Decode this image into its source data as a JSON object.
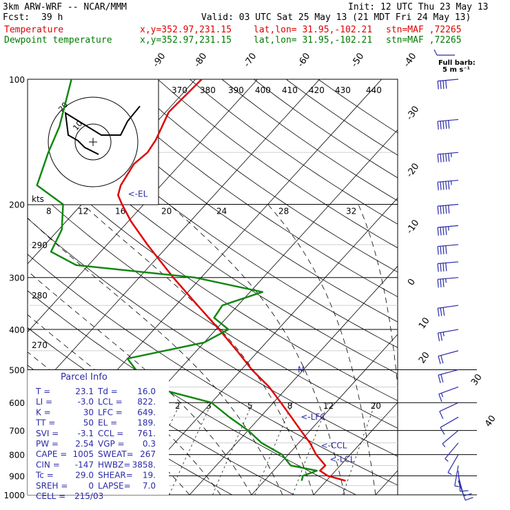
{
  "header": {
    "model": "3km ARW-WRF -- NCAR/MMM",
    "init": "Init: 12 UTC Thu 23 May 13",
    "fcst_label": "Fcst:",
    "fcst_value": "39 h",
    "valid": "Valid: 03 UTC Sat 25 May 13 (21 MDT Fri 24 May 13)",
    "temp_label": "Temperature",
    "dew_label": "Dewpoint temperature",
    "xy": "x,y=352.97,231.15",
    "latlon": "lat,lon= 31.95,-102.21",
    "stn": "stn=MAF ,72265",
    "full_barb_line1": "Full barb:",
    "full_barb_line2": "5 m s⁻¹"
  },
  "colors": {
    "temperature": "#e00000",
    "dewpoint": "#118811",
    "barbs": "#2a2aa8",
    "grid": "#000000"
  },
  "chart_data": {
    "type": "skew-t",
    "yscale": "log",
    "ylim": [
      1000,
      100
    ],
    "pressure_labels": [
      "100",
      "200",
      "300",
      "400",
      "500",
      "600",
      "700",
      "800",
      "900",
      "1000"
    ],
    "temp_isotherm_labels": [
      "-90",
      "-80",
      "-70",
      "-60",
      "-50",
      "-40",
      "-30",
      "-20",
      "-10",
      "0",
      "10",
      "20",
      "30",
      "40"
    ],
    "mixing_ratio_labels": [
      "2",
      "3",
      "5",
      "8",
      "12",
      "20"
    ],
    "theta_labels": [
      "270",
      "280",
      "290",
      "370",
      "380",
      "390",
      "400",
      "410",
      "420",
      "430",
      "440"
    ],
    "hodo_kts_label": "kts",
    "hodo_speed_labels": [
      "8",
      "12",
      "16",
      "20",
      "24",
      "28",
      "32"
    ],
    "hodo_ring_labels": [
      "10",
      "20"
    ],
    "level_markers": [
      {
        "label": "<-EL",
        "p": 189
      },
      {
        "label": "<-LFC",
        "p": 649
      },
      {
        "label": "<-CCL",
        "p": 761
      },
      {
        "label": "<-LCL",
        "p": 822
      }
    ],
    "wet_bulb_zero_marker": "M",
    "series": [
      {
        "name": "Temperature",
        "points": [
          [
            925,
            23.1
          ],
          [
            900,
            19.5
          ],
          [
            875,
            17.5
          ],
          [
            850,
            17.6
          ],
          [
            800,
            14.5
          ],
          [
            750,
            11.8
          ],
          [
            700,
            8.5
          ],
          [
            650,
            5.0
          ],
          [
            600,
            1.2
          ],
          [
            550,
            -3.0
          ],
          [
            500,
            -8.3
          ],
          [
            450,
            -13.5
          ],
          [
            400,
            -19.5
          ],
          [
            350,
            -26.5
          ],
          [
            300,
            -34.5
          ],
          [
            250,
            -43.5
          ],
          [
            220,
            -49.5
          ],
          [
            200,
            -53.5
          ],
          [
            190,
            -55.5
          ],
          [
            180,
            -56.5
          ],
          [
            160,
            -57.5
          ],
          [
            150,
            -57.0
          ],
          [
            140,
            -57.5
          ],
          [
            120,
            -59.5
          ],
          [
            100,
            -59.0
          ]
        ]
      },
      {
        "name": "Dewpoint temperature",
        "points": [
          [
            925,
            16.0
          ],
          [
            900,
            15.5
          ],
          [
            875,
            17.0
          ],
          [
            850,
            12.0
          ],
          [
            800,
            9.0
          ],
          [
            750,
            4.0
          ],
          [
            700,
            0.0
          ],
          [
            650,
            -5.0
          ],
          [
            600,
            -10.0
          ],
          [
            550,
            -22.0
          ],
          [
            500,
            -27.0
          ],
          [
            470,
            -30.0
          ],
          [
            430,
            -20.0
          ],
          [
            400,
            -18.0
          ],
          [
            375,
            -22.0
          ],
          [
            350,
            -22.5
          ],
          [
            325,
            -18.0
          ],
          [
            300,
            -31.0
          ],
          [
            280,
            -52.0
          ],
          [
            260,
            -58.0
          ],
          [
            230,
            -59.5
          ],
          [
            200,
            -63.0
          ],
          [
            180,
            -70.0
          ],
          [
            150,
            -73.0
          ],
          [
            130,
            -75.0
          ],
          [
            100,
            -80.0
          ]
        ]
      }
    ],
    "wind_profile": [
      {
        "p": 925,
        "speed_ms": 7,
        "dir": 160
      },
      {
        "p": 900,
        "speed_ms": 7,
        "dir": 165
      },
      {
        "p": 875,
        "speed_ms": 6,
        "dir": 175
      },
      {
        "p": 850,
        "speed_ms": 4,
        "dir": 190
      },
      {
        "p": 800,
        "speed_ms": 3,
        "dir": 210
      },
      {
        "p": 750,
        "speed_ms": 3,
        "dir": 220
      },
      {
        "p": 700,
        "speed_ms": 4,
        "dir": 230
      },
      {
        "p": 650,
        "speed_ms": 5,
        "dir": 240
      },
      {
        "p": 600,
        "speed_ms": 7,
        "dir": 245
      },
      {
        "p": 550,
        "speed_ms": 9,
        "dir": 250
      },
      {
        "p": 500,
        "speed_ms": 11,
        "dir": 255
      },
      {
        "p": 450,
        "speed_ms": 12,
        "dir": 255
      },
      {
        "p": 400,
        "speed_ms": 14,
        "dir": 260
      },
      {
        "p": 350,
        "speed_ms": 17,
        "dir": 262
      },
      {
        "p": 300,
        "speed_ms": 19,
        "dir": 265
      },
      {
        "p": 275,
        "speed_ms": 20,
        "dir": 265
      },
      {
        "p": 250,
        "speed_ms": 22,
        "dir": 265
      },
      {
        "p": 225,
        "speed_ms": 24,
        "dir": 265
      },
      {
        "p": 200,
        "speed_ms": 26,
        "dir": 265
      },
      {
        "p": 175,
        "speed_ms": 28,
        "dir": 265
      },
      {
        "p": 150,
        "speed_ms": 28,
        "dir": 265
      },
      {
        "p": 125,
        "speed_ms": 25,
        "dir": 265
      },
      {
        "p": 100,
        "speed_ms": 22,
        "dir": 265
      }
    ],
    "hodograph": [
      [
        5,
        -6
      ],
      [
        4,
        -2
      ],
      [
        2,
        3
      ],
      [
        3,
        8
      ],
      [
        -3,
        10
      ],
      [
        -8,
        15
      ],
      [
        -9,
        24
      ],
      [
        -11,
        34
      ]
    ]
  },
  "parcel_info": {
    "title": "Parcel Info",
    "rows": [
      [
        "T  =",
        "23.1",
        "Td =",
        "16.0"
      ],
      [
        "LI =",
        "-3.0",
        "LCL =",
        "822."
      ],
      [
        "K  =",
        "30",
        "LFC =",
        "649."
      ],
      [
        "TT =",
        "50",
        "EL  =",
        "189."
      ],
      [
        "SVI =",
        "-3.1",
        "CCL =",
        "761."
      ],
      [
        "PW =",
        "2.54",
        "VGP =",
        "0.3"
      ],
      [
        "CAPE =",
        "1005",
        "SWEAT=",
        "267"
      ],
      [
        "CIN =",
        "-147",
        "HWBZ=",
        "3858."
      ],
      [
        "Tc =",
        "29.0",
        "SHEAR=",
        "19."
      ],
      [
        "SREH =",
        "0",
        "LAPSE=",
        "7.0"
      ],
      [
        "CELL =",
        "215/03",
        "",
        ""
      ]
    ]
  }
}
